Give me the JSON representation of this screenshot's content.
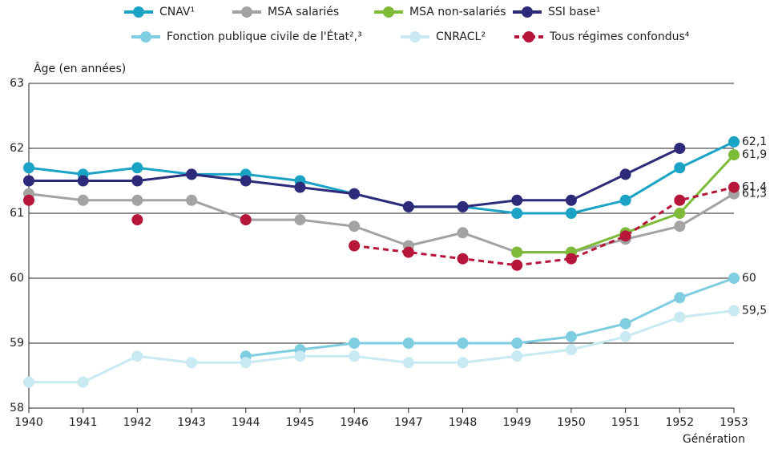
{
  "chart_data": {
    "type": "line",
    "y_label": "Âge (en années)",
    "x_label": "Génération",
    "x": [
      1940,
      1941,
      1942,
      1943,
      1944,
      1945,
      1946,
      1947,
      1948,
      1949,
      1950,
      1951,
      1952,
      1953
    ],
    "xlim": [
      1940,
      1953
    ],
    "xticks": [
      1940,
      1941,
      1942,
      1943,
      1944,
      1945,
      1946,
      1947,
      1948,
      1949,
      1950,
      1951,
      1952,
      1953
    ],
    "ylim": [
      58,
      63
    ],
    "yticks": [
      58,
      59,
      60,
      61,
      62,
      63
    ],
    "grid": true,
    "legend": "top",
    "series": [
      {
        "name": "CNAV¹",
        "color": "#1aa3c4",
        "linestyle": "solid",
        "values": [
          61.7,
          61.6,
          61.7,
          61.6,
          61.6,
          61.5,
          61.3,
          61.1,
          61.1,
          61.0,
          61.0,
          61.2,
          61.7,
          62.1
        ],
        "value_labels": [
          null,
          null,
          null,
          null,
          null,
          null,
          null,
          null,
          null,
          null,
          null,
          null,
          null,
          "62,1"
        ]
      },
      {
        "name": "MSA salariés",
        "color": "#a3a3a3",
        "linestyle": "solid",
        "values": [
          61.3,
          61.2,
          61.2,
          61.2,
          60.9,
          60.9,
          60.8,
          60.5,
          60.7,
          60.4,
          60.4,
          60.6,
          60.8,
          61.3
        ],
        "value_labels": [
          null,
          null,
          null,
          null,
          null,
          null,
          null,
          null,
          null,
          null,
          null,
          null,
          null,
          "61,3"
        ]
      },
      {
        "name": "MSA non-salariés",
        "color": "#7dbb38",
        "linestyle": "solid",
        "values": [
          null,
          null,
          null,
          null,
          null,
          null,
          null,
          null,
          null,
          60.4,
          60.4,
          60.7,
          61.0,
          61.9
        ],
        "value_labels": [
          null,
          null,
          null,
          null,
          null,
          null,
          null,
          null,
          null,
          null,
          null,
          null,
          null,
          "61,9"
        ]
      },
      {
        "name": "SSI base¹",
        "color": "#2e2a7a",
        "linestyle": "solid",
        "values": [
          61.5,
          61.5,
          61.5,
          61.6,
          61.5,
          61.4,
          61.3,
          61.1,
          61.1,
          61.2,
          61.2,
          61.6,
          62.0,
          null
        ]
      },
      {
        "name": "Fonction publique civile de l'État²,³",
        "color": "#7fcde0",
        "linestyle": "solid",
        "values": [
          null,
          null,
          null,
          null,
          58.8,
          58.9,
          59.0,
          59.0,
          59.0,
          59.0,
          59.1,
          59.3,
          59.7,
          60.0
        ],
        "value_labels": [
          null,
          null,
          null,
          null,
          null,
          null,
          null,
          null,
          null,
          null,
          null,
          null,
          null,
          "60"
        ]
      },
      {
        "name": "CNRACL²",
        "color": "#c9e9f3",
        "linestyle": "solid",
        "values": [
          58.4,
          58.4,
          58.8,
          58.7,
          58.7,
          58.8,
          58.8,
          58.7,
          58.7,
          58.8,
          58.9,
          59.1,
          59.4,
          59.5
        ],
        "value_labels": [
          null,
          null,
          null,
          null,
          null,
          null,
          null,
          null,
          null,
          null,
          null,
          null,
          null,
          "59,5"
        ]
      },
      {
        "name": "Tous régimes confondus⁴",
        "color": "#b5163a",
        "linestyle": "dashed",
        "values": [
          61.2,
          null,
          60.9,
          null,
          60.9,
          null,
          60.5,
          60.4,
          60.3,
          60.2,
          60.3,
          60.65,
          61.2,
          61.4
        ],
        "value_labels": [
          null,
          null,
          null,
          null,
          null,
          null,
          null,
          null,
          null,
          null,
          null,
          null,
          null,
          "61,4"
        ]
      }
    ]
  }
}
